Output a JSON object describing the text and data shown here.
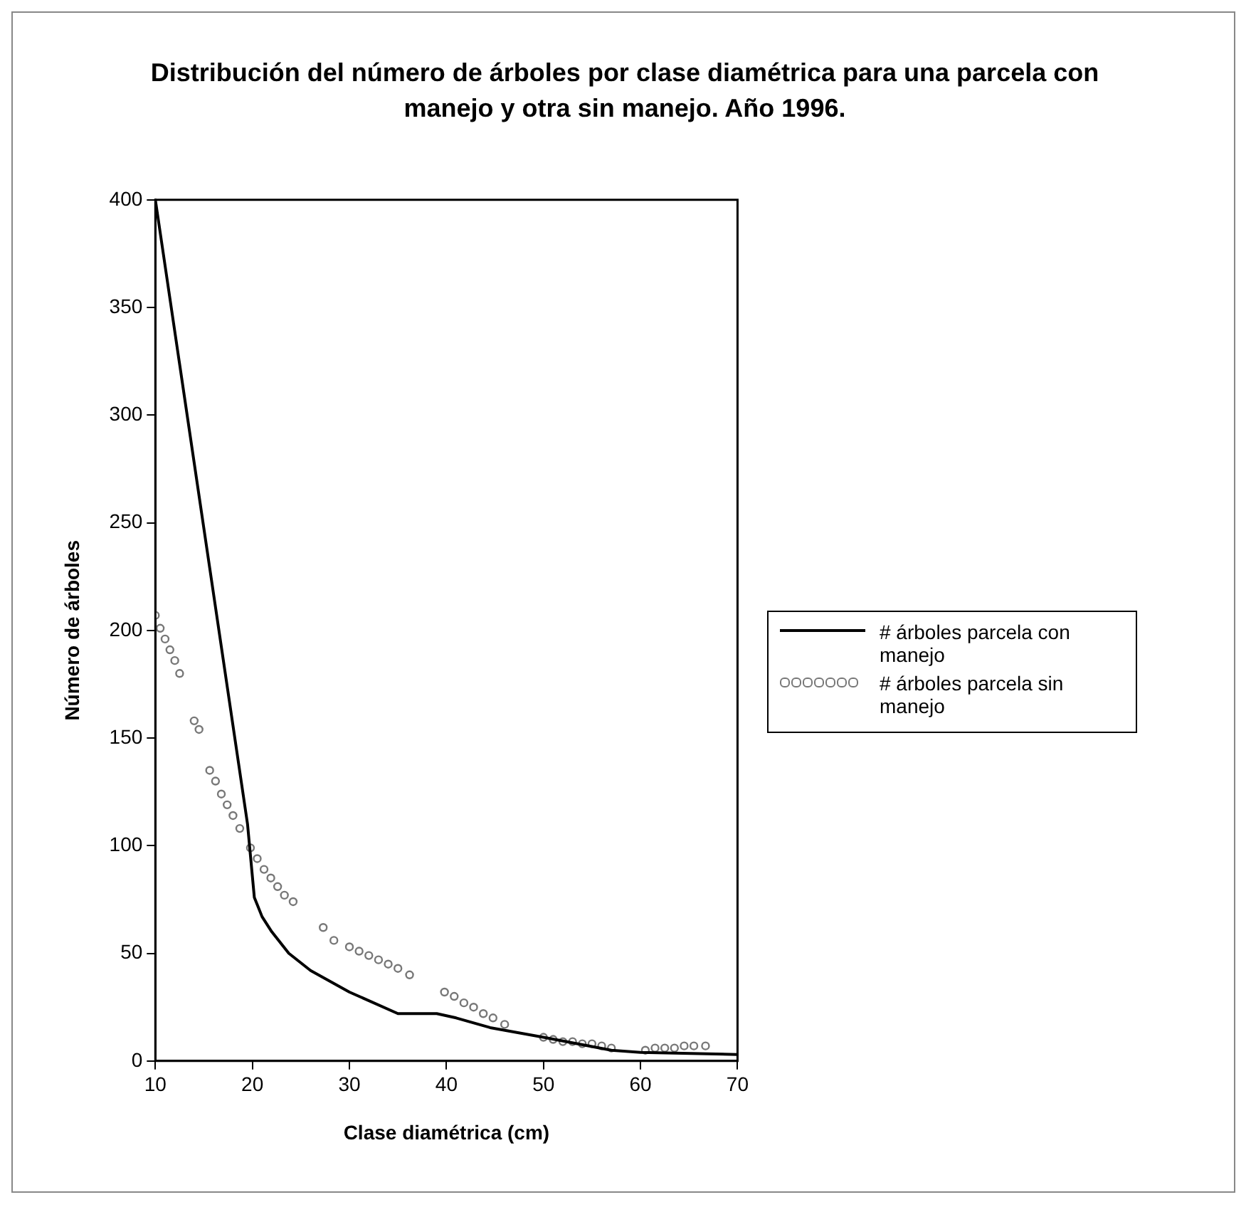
{
  "chart_data": {
    "type": "line",
    "title": "Distribución del número de árboles por clase diamétrica para una parcela con manejo y otra sin manejo. Año 1996.",
    "xlabel": "Clase diamétrica (cm)",
    "ylabel": "Número de árboles",
    "xlim": [
      10,
      70
    ],
    "xticks": [
      10,
      20,
      30,
      40,
      50,
      60,
      70
    ],
    "ylim": [
      0,
      400
    ],
    "yticks": [
      0,
      50,
      100,
      150,
      200,
      250,
      300,
      350,
      400
    ],
    "grid": false,
    "legend": "right",
    "series": [
      {
        "name": "# árboles parcela  con manejo",
        "color": "#000000",
        "marker": "none",
        "line_style": "solid",
        "x": [
          10,
          19.5,
          20.2,
          21,
          22,
          23.75,
          26,
          30,
          35,
          39,
          41,
          44.5,
          50,
          57,
          60,
          70
        ],
        "values": [
          400,
          110,
          76,
          67,
          60,
          50,
          42,
          32,
          22,
          22,
          20,
          15.5,
          11,
          5,
          4,
          3
        ]
      },
      {
        "name": "# árboles parcela  sin manejo",
        "type": "scatter",
        "color": "#777777",
        "marker": "circle",
        "x": [
          10,
          10.5,
          11,
          11.5,
          12,
          12.5,
          14,
          14.5,
          15.6,
          16.2,
          16.8,
          17.4,
          18,
          18.7,
          19.8,
          20.5,
          21.2,
          21.9,
          22.6,
          23.3,
          24.2,
          27.3,
          28.4,
          30,
          31,
          32,
          33,
          34,
          35,
          36.2,
          39.8,
          40.8,
          41.8,
          42.8,
          43.8,
          44.8,
          46,
          50,
          51,
          52,
          53,
          54,
          55,
          56,
          57,
          60.5,
          61.5,
          62.5,
          63.5,
          64.5,
          65.5,
          66.7
        ],
        "values": [
          207,
          201,
          196,
          191,
          186,
          180,
          158,
          154,
          135,
          130,
          124,
          119,
          114,
          108,
          99,
          94,
          89,
          85,
          81,
          77,
          74,
          62,
          56,
          53,
          51,
          49,
          47,
          45,
          43,
          40,
          32,
          30,
          27,
          25,
          22,
          20,
          17,
          11,
          10,
          9,
          9,
          8,
          8,
          7,
          6,
          5,
          6,
          6,
          6,
          7,
          7,
          7
        ]
      }
    ]
  }
}
